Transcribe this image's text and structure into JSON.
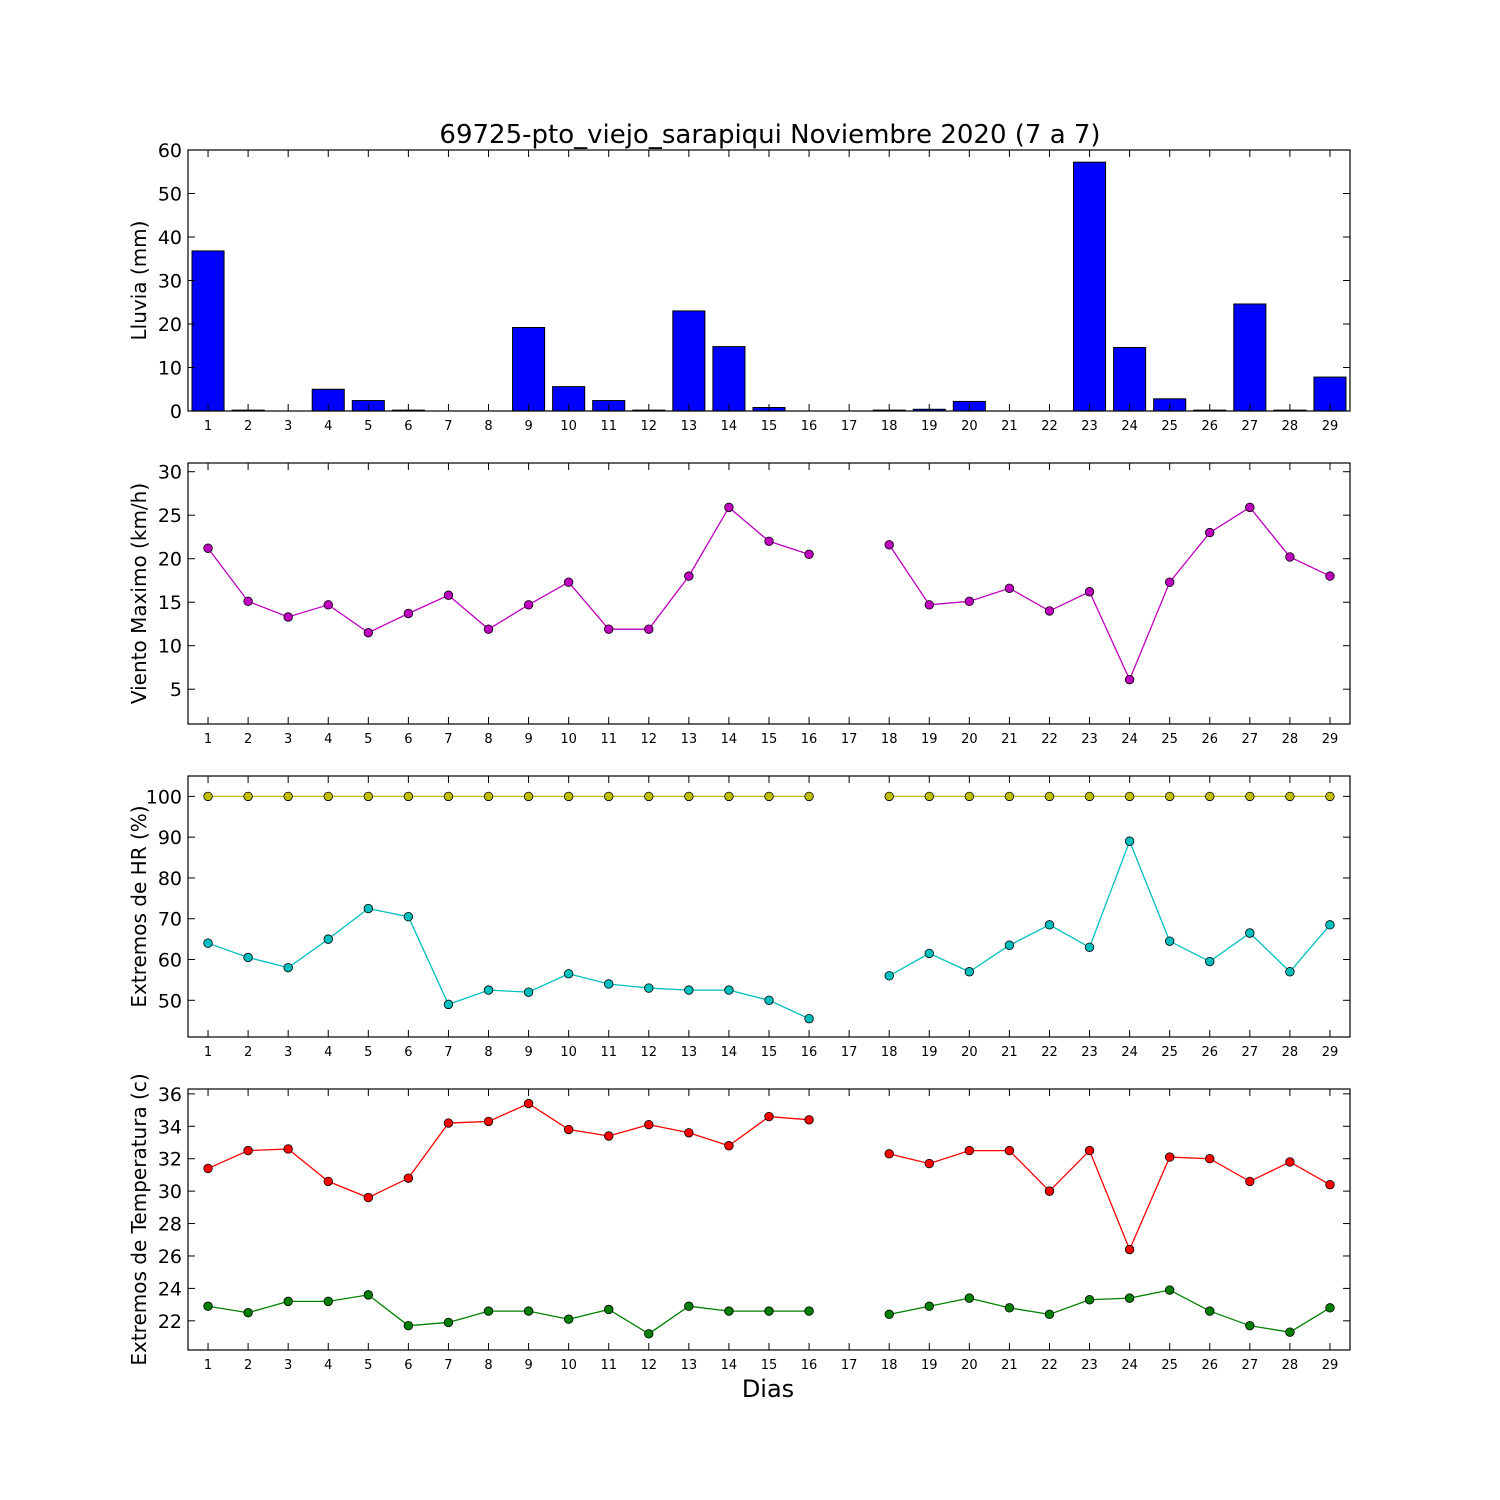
{
  "chart_data": {
    "title": "69725-pto_viejo_sarapiqui Noviembre 2020  (7 a 7)",
    "xlabel": "Dias",
    "days": [
      1,
      2,
      3,
      4,
      5,
      6,
      7,
      8,
      9,
      10,
      11,
      12,
      13,
      14,
      15,
      16,
      17,
      18,
      19,
      20,
      21,
      22,
      23,
      24,
      25,
      26,
      27,
      28,
      29
    ],
    "panels": [
      {
        "type": "bar",
        "ylabel": "Lluvia (mm)",
        "ylim": [
          0,
          60
        ],
        "yticks": [
          0,
          10,
          20,
          30,
          40,
          50,
          60
        ],
        "series": [
          {
            "color": "#0000ff",
            "values": [
              36.8,
              0.2,
              0.0,
              5.0,
              2.4,
              0.2,
              0.0,
              0.0,
              19.2,
              5.6,
              2.4,
              0.2,
              23.0,
              14.8,
              0.8,
              0.0,
              0.0,
              0.2,
              0.4,
              2.2,
              0.0,
              0.0,
              57.2,
              14.6,
              2.8,
              0.2,
              24.6,
              0.2,
              7.8
            ]
          }
        ]
      },
      {
        "type": "line",
        "ylabel": "Viento Maximo (km/h)",
        "ylim": [
          1,
          31
        ],
        "yticks": [
          5,
          10,
          15,
          20,
          25,
          30
        ],
        "series": [
          {
            "color": "#bf00bf",
            "values": [
              21.2,
              15.1,
              13.3,
              14.7,
              11.5,
              13.7,
              15.8,
              11.9,
              14.7,
              17.3,
              11.9,
              11.9,
              18.0,
              25.9,
              22.0,
              20.5,
              null,
              21.6,
              14.7,
              15.1,
              16.6,
              14.0,
              16.2,
              6.1,
              17.3,
              23.0,
              25.9,
              20.2,
              18.0
            ]
          }
        ]
      },
      {
        "type": "line",
        "ylabel": "Extremos de HR (%)",
        "ylim": [
          41,
          105
        ],
        "yticks": [
          50,
          60,
          70,
          80,
          90,
          100
        ],
        "series": [
          {
            "color": "#bfbf00",
            "values": [
              100,
              100,
              100,
              100,
              100,
              100,
              100,
              100,
              100,
              100,
              100,
              100,
              100,
              100,
              100,
              100,
              null,
              100,
              100,
              100,
              100,
              100,
              100,
              100,
              100,
              100,
              100,
              100,
              100
            ]
          },
          {
            "color": "#00bfbf",
            "values": [
              64.0,
              60.5,
              58.0,
              65.0,
              72.5,
              70.5,
              49.0,
              52.5,
              52.0,
              56.5,
              54.0,
              53.0,
              52.5,
              52.5,
              50.0,
              45.5,
              null,
              56.0,
              61.5,
              57.0,
              63.5,
              68.5,
              63.0,
              89.0,
              64.5,
              59.5,
              66.5,
              57.0,
              68.5
            ]
          }
        ]
      },
      {
        "type": "line",
        "ylabel": "Extremos de Temperatura (c)",
        "ylim": [
          20.2,
          36.3
        ],
        "yticks": [
          22,
          24,
          26,
          28,
          30,
          32,
          34,
          36
        ],
        "series": [
          {
            "color": "#ff0000",
            "values": [
              31.4,
              32.5,
              32.6,
              30.6,
              29.6,
              30.8,
              34.2,
              34.3,
              35.4,
              33.8,
              33.4,
              34.1,
              33.6,
              32.8,
              34.6,
              34.4,
              null,
              32.3,
              31.7,
              32.5,
              32.5,
              30.0,
              32.5,
              26.4,
              32.1,
              32.0,
              30.6,
              31.8,
              30.4
            ]
          },
          {
            "color": "#008000",
            "values": [
              22.9,
              22.5,
              23.2,
              23.2,
              23.6,
              21.7,
              21.9,
              22.6,
              22.6,
              22.1,
              22.7,
              21.2,
              22.9,
              22.6,
              22.6,
              22.6,
              null,
              22.4,
              22.9,
              23.4,
              22.8,
              22.4,
              23.3,
              23.4,
              23.9,
              22.6,
              21.7,
              21.3,
              22.8
            ]
          }
        ]
      }
    ]
  }
}
